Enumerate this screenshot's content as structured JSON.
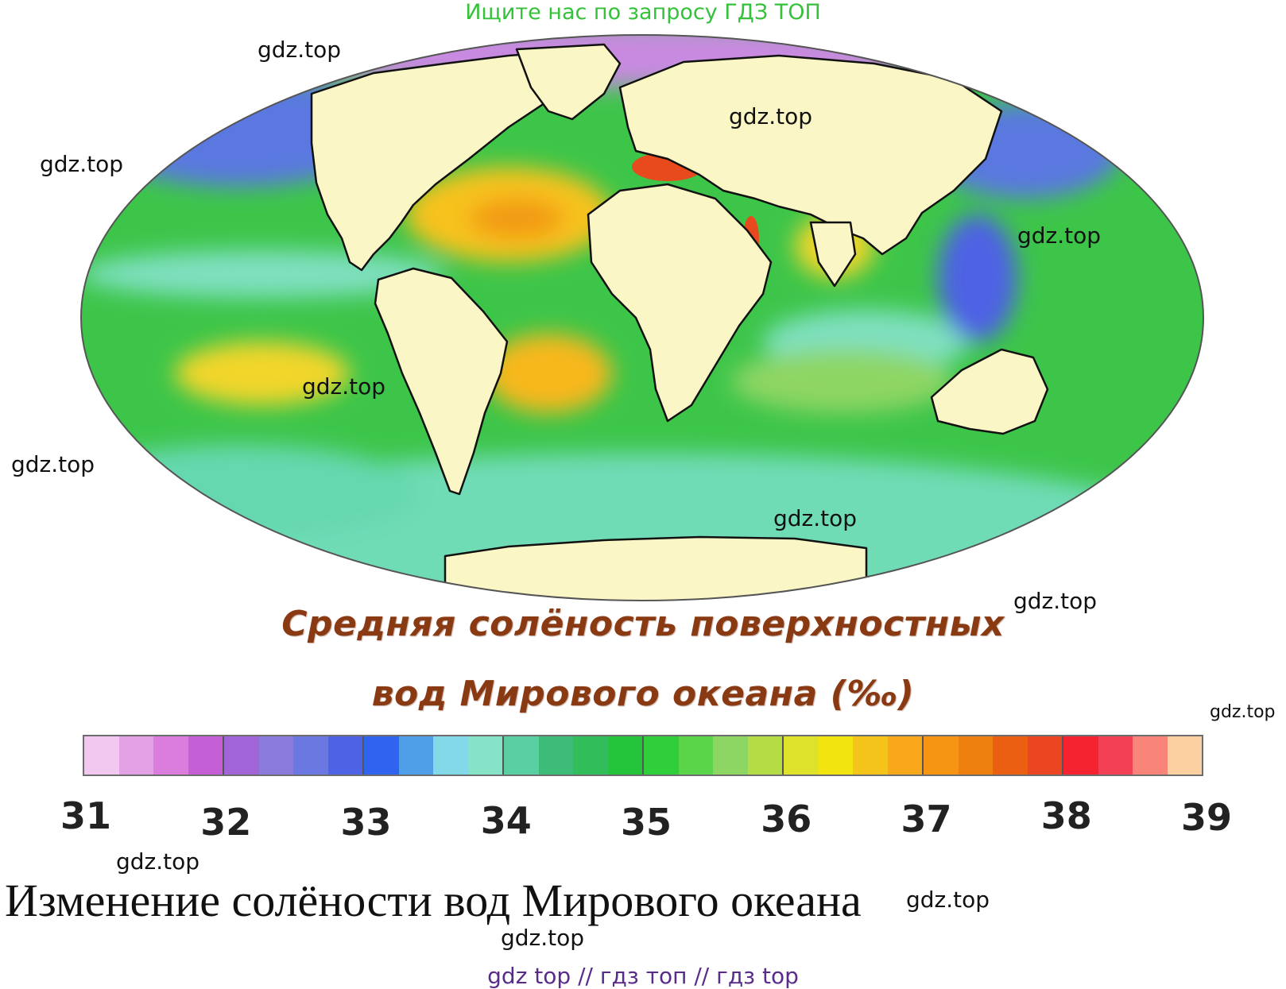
{
  "banner": "Ищите нас по запросу ГДЗ ТОП",
  "watermark": "gdz.top",
  "map": {
    "title_line1": "Средняя солёность поверхностных",
    "title_line2": "вод Мирового океана (‰)",
    "colors": {
      "land": "#fbf6c6",
      "ocean_green": "#3dc54a",
      "ocean_teal": "#6fdcb6",
      "high_salinity": "#f7a21a",
      "max_salinity": "#e84a1e",
      "low_salinity": "#3f66e6"
    }
  },
  "legend": {
    "ticks": [
      "31",
      "32",
      "33",
      "34",
      "35",
      "36",
      "37",
      "38",
      "39"
    ],
    "colors": [
      "#f0c8f0",
      "#e4a2e6",
      "#db7ddc",
      "#c45fd6",
      "#a165d8",
      "#8a7bdc",
      "#6c78e2",
      "#4d62e4",
      "#2f63f0",
      "#4e9ee8",
      "#84d9e8",
      "#86e3c8",
      "#5ad0a2",
      "#3cbc76",
      "#30bd5a",
      "#23c43a",
      "#2fcf3c",
      "#5ad54a",
      "#8ed664",
      "#b4dc44",
      "#dfe22a",
      "#f2e40e",
      "#f5c41a",
      "#f8a81a",
      "#f69414",
      "#ee8010",
      "#ea5f12",
      "#eb4621",
      "#f52230",
      "#f44055",
      "#f8847a",
      "#fcd0a0"
    ]
  },
  "caption": "Изменение солёности вод Мирового океана",
  "footer": "gdz top  //  гдз топ  //  гдз top"
}
